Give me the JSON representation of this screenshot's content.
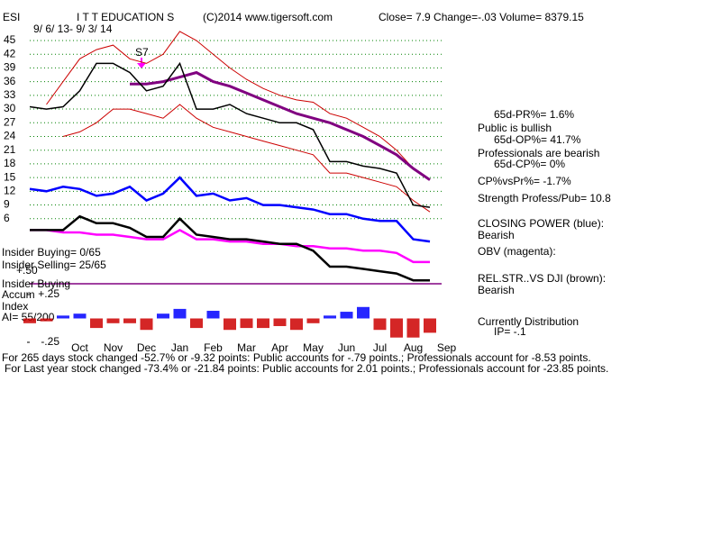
{
  "chart_data": [
    {
      "type": "line",
      "title": "I T T EDUCATION S",
      "annotations": [
        "ESI",
        "(C)2014 www.tigersoft.com",
        "Close=  7.9  Change=-.03 Volume= 8379.15",
        "9/ 6/ 13- 9/ 3/ 14",
        "S7",
        "65d-PR%= 1.6%",
        "Public is bullish",
        "65d-OP%= 41.7%",
        "Professionals are bearish",
        "65d-CP%= 0%",
        "CP%vsPr%= -1.7%",
        "Strength Profess/Pub= 10.8",
        "CLOSING POWER (blue):",
        "Bearish",
        "OBV (magenta):",
        "REL.STR..VS DJI (brown):",
        "Bearish",
        "Currently Distribution",
        "IP= -.1",
        "Insider Buying= 0/65",
        "Insider Selling= 25/65",
        "+.50",
        "Insider Buying",
        "Accum",
        "Index",
        "AI= 55/200",
        "For 265 days stock changed -52.7% or -9.32 points:  Public accounts for -.79 points.;  Professionals account for -8.53 points.",
        "For Last year stock changed -73.4% or -21.84 points:  Public accounts for  2.01 points.;  Professionals account for -23.85 points."
      ],
      "categories": [
        null,
        null,
        null,
        "Oct",
        null,
        "Nov",
        null,
        "Dec",
        null,
        "Jan",
        null,
        "Feb",
        null,
        "Mar",
        null,
        "Apr",
        null,
        "May",
        null,
        "Jun",
        null,
        "Jul",
        null,
        "Aug",
        null,
        "Sep"
      ],
      "ylim": [
        -10,
        52
      ],
      "yticks": [
        45,
        42,
        39,
        36,
        33,
        30,
        27,
        24,
        21,
        18,
        15,
        12,
        9,
        6
      ],
      "grid": true,
      "grid_color": "#008000",
      "series": [
        {
          "color": "#cc0000",
          "width": 1,
          "values": [
            null,
            31,
            36,
            41,
            43,
            44,
            41,
            40,
            42,
            47,
            45,
            42,
            39,
            36.5,
            34.5,
            33,
            32,
            31.5,
            29,
            28,
            26,
            24,
            21,
            17,
            14.5,
            null
          ]
        },
        {
          "color": "#cc0000",
          "width": 1,
          "values": [
            null,
            null,
            24,
            25,
            27,
            30,
            30,
            29,
            28,
            31,
            28,
            26,
            25,
            24,
            23,
            22,
            21,
            20,
            16,
            16,
            15,
            14,
            13,
            10,
            7.5,
            null
          ]
        },
        {
          "color": "#800080",
          "width": 3,
          "values": [
            null,
            null,
            null,
            null,
            null,
            null,
            35.5,
            35.5,
            36,
            37,
            38,
            36,
            35,
            33.5,
            32,
            30.5,
            29,
            28,
            27,
            25.5,
            24,
            22,
            20,
            17,
            14.5,
            null
          ]
        },
        {
          "color": "#000000",
          "width": 1.5,
          "values": [
            30.5,
            30,
            30.5,
            34,
            40,
            40,
            38,
            34,
            35,
            40,
            30,
            30,
            31,
            29,
            28,
            27,
            27,
            25.5,
            18.5,
            18.5,
            17.5,
            17,
            16,
            9,
            8.5,
            null
          ]
        },
        {
          "color": "#0000ff",
          "width": 2.5,
          "values": [
            12.5,
            12,
            13,
            12.5,
            11,
            11.5,
            13,
            10,
            11.5,
            15,
            11,
            11.5,
            10,
            10.5,
            9,
            9,
            8.5,
            8,
            7,
            7,
            6,
            5.5,
            5.5,
            1.5,
            1,
            null
          ]
        },
        {
          "color": "#ff00ff",
          "width": 2.5,
          "values": [
            3.5,
            3.5,
            3,
            3,
            2.5,
            2.5,
            2,
            1.5,
            1.5,
            3.5,
            1.5,
            1.5,
            1,
            1,
            0.5,
            0.5,
            0,
            0,
            -0.5,
            -0.5,
            -1,
            -1,
            -1.5,
            -3.5,
            -3.5,
            null
          ]
        },
        {
          "color": "#000000",
          "width": 2.5,
          "values": [
            3.5,
            3.5,
            3.5,
            6.5,
            5,
            5,
            4,
            2,
            2,
            6,
            2.5,
            2,
            1.5,
            1.5,
            1,
            0.5,
            0.5,
            -1,
            -4.5,
            -4.5,
            -5,
            -5.5,
            -6,
            -7.5,
            -7.5,
            null
          ]
        }
      ]
    },
    {
      "type": "bar",
      "ylim": [
        -0.25,
        0.25
      ],
      "yticks": [
        {
          "value": 0.25,
          "label": "+.25"
        },
        {
          "value": -0.25,
          "label": "-.25"
        }
      ],
      "positive_color": "#0000ff",
      "negative_color": "#cc0000",
      "values": [
        -0.05,
        -0.03,
        0.03,
        0.05,
        -0.1,
        -0.05,
        -0.05,
        -0.12,
        0.05,
        0.1,
        -0.1,
        0.08,
        -0.12,
        -0.1,
        -0.1,
        -0.08,
        -0.12,
        -0.05,
        0.03,
        0.07,
        0.12,
        -0.12,
        -0.2,
        -0.2,
        -0.15,
        null
      ]
    }
  ]
}
